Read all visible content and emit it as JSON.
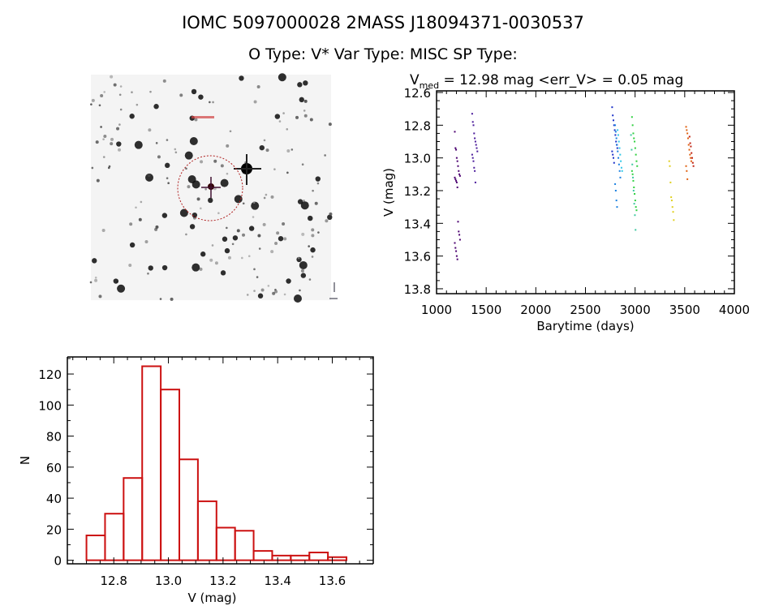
{
  "header": {
    "title_line1": "IOMC 5097000028    2MASS J18094371-0030537",
    "title_line2": "O Type: V*  Var Type: MISC  SP Type:"
  },
  "finder_image": {
    "type": "sky-image",
    "description_label": ""
  },
  "chart_data": [
    {
      "type": "scatter",
      "title_main": "V",
      "title_sub": "med",
      "title_rest": " = 12.98 mag <err_V> = 0.05 mag",
      "xlabel": "Barytime (days)",
      "ylabel": "V (mag)",
      "xlim": [
        1000,
        4000
      ],
      "ylim": [
        13.83,
        12.59
      ],
      "y_reversed": true,
      "xticks": [
        1000,
        1500,
        2000,
        2500,
        3000,
        3500,
        4000
      ],
      "xtick_labels": [
        "1000",
        "1500",
        "2000",
        "2500",
        "3000",
        "3500",
        "4000"
      ],
      "yticks": [
        12.6,
        12.8,
        13.0,
        13.2,
        13.4,
        13.6,
        13.8
      ],
      "ytick_labels": [
        "12.6",
        "12.8",
        "13.0",
        "13.2",
        "13.4",
        "13.6",
        "13.8"
      ],
      "grid": false,
      "series": [
        {
          "color": "#4b0070",
          "x": 1210,
          "y": [
            12.84,
            12.94,
            12.95,
            13.0,
            13.02,
            13.05,
            13.08,
            13.1,
            13.11,
            13.12,
            13.13,
            13.14,
            13.15,
            13.18,
            13.39,
            13.45,
            13.47,
            13.5,
            13.52,
            13.55,
            13.57,
            13.6,
            13.62
          ]
        },
        {
          "color": "#4a1a9a",
          "x": 1385,
          "y": [
            12.73,
            12.78,
            12.8,
            12.85,
            12.88,
            12.9,
            12.92,
            12.94,
            12.96,
            12.98,
            13.0,
            13.02,
            13.06,
            13.08,
            13.15
          ]
        },
        {
          "color": "#1a30c8",
          "x": 2795,
          "y": [
            12.69,
            12.74,
            12.77,
            12.8,
            12.83,
            12.86,
            12.9,
            12.92,
            12.94,
            12.96,
            12.98,
            13.0,
            13.03
          ]
        },
        {
          "color": "#1a80e0",
          "x": 2825,
          "y": [
            12.8,
            12.84,
            12.88,
            12.92,
            12.96,
            13.0,
            13.04,
            13.08,
            13.12,
            13.16,
            13.2,
            13.26,
            13.3
          ]
        },
        {
          "color": "#30c8e8",
          "x": 2850,
          "y": [
            12.83,
            12.86,
            12.9,
            12.94,
            12.98,
            13.02,
            13.06,
            13.08
          ]
        },
        {
          "color": "#30d040",
          "x": 2995,
          "y": [
            12.75,
            12.8,
            12.85,
            12.88,
            12.9,
            12.94,
            12.98,
            13.02,
            13.05,
            13.08,
            13.1,
            13.14,
            13.18,
            13.22,
            13.26,
            13.3,
            13.32
          ]
        },
        {
          "color": "#40c8a0",
          "x": 2985,
          "y": [
            12.86,
            12.95,
            13.04,
            13.12,
            13.2,
            13.28,
            13.35,
            13.44
          ]
        },
        {
          "color": "#e0d020",
          "x": 3370,
          "y": [
            13.02,
            13.05,
            13.15,
            13.24,
            13.26,
            13.3,
            13.33,
            13.38
          ]
        },
        {
          "color": "#e06010",
          "x": 3540,
          "y": [
            12.81,
            12.83,
            12.85,
            12.88,
            12.92,
            12.95,
            12.98,
            13.0,
            13.02,
            13.05,
            13.08,
            13.13
          ]
        },
        {
          "color": "#c02010",
          "x": 3575,
          "y": [
            12.87,
            12.91,
            12.93,
            12.97,
            13.0,
            13.03,
            13.05
          ]
        }
      ]
    },
    {
      "type": "bar",
      "subtype": "histogram",
      "xlabel": "V (mag)",
      "ylabel": "N",
      "xlim": [
        12.63,
        13.75
      ],
      "ylim": [
        -2.3,
        131
      ],
      "xticks": [
        12.8,
        13.0,
        13.2,
        13.4,
        13.6
      ],
      "xtick_labels": [
        "12.8",
        "13.0",
        "13.2",
        "13.4",
        "13.6"
      ],
      "yticks": [
        0,
        20,
        40,
        60,
        80,
        100,
        120
      ],
      "ytick_labels": [
        "0",
        "20",
        "40",
        "60",
        "80",
        "100",
        "120"
      ],
      "bin_edges": [
        12.7,
        12.768,
        12.836,
        12.904,
        12.972,
        13.04,
        13.108,
        13.176,
        13.244,
        13.312,
        13.38,
        13.448,
        13.516,
        13.584,
        13.652
      ],
      "counts": [
        16,
        30,
        53,
        125,
        110,
        65,
        38,
        21,
        19,
        6,
        3,
        3,
        5,
        2
      ],
      "bar_color": "#cc1111",
      "grid": false
    }
  ]
}
